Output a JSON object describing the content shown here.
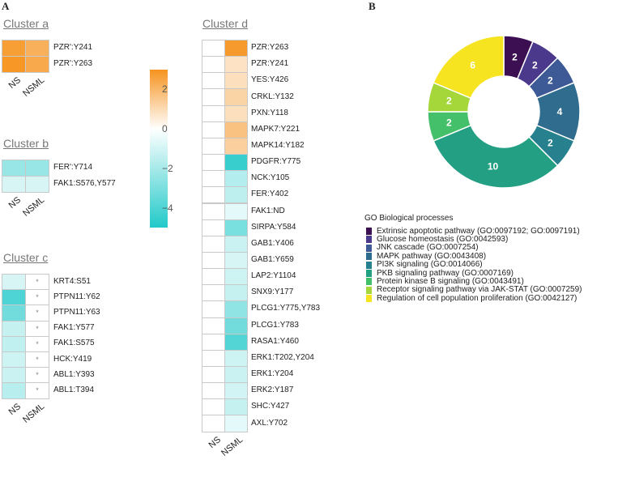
{
  "panels": {
    "a": "A",
    "b": "B"
  },
  "chart_data": [
    {
      "type": "heatmap",
      "title": "Cluster a",
      "columns": [
        "NS",
        "NSML"
      ],
      "rows": [
        "PZR':Y241",
        "PZR':Y263"
      ],
      "values": [
        [
          2.7,
          2.2
        ],
        [
          2.9,
          2.4
        ]
      ],
      "significance": [
        [
          "",
          ""
        ],
        [
          "",
          ""
        ]
      ]
    },
    {
      "type": "heatmap",
      "title": "Cluster b",
      "columns": [
        "NS",
        "NSML"
      ],
      "rows": [
        "FER':Y714",
        "FAK1:S576,Y577"
      ],
      "values": [
        [
          -2.3,
          -2.3
        ],
        [
          -0.9,
          -0.9
        ]
      ],
      "significance": [
        [
          "",
          ""
        ],
        [
          "",
          ""
        ]
      ]
    },
    {
      "type": "heatmap",
      "title": "Cluster c",
      "columns": [
        "NS",
        "NSML"
      ],
      "rows": [
        "KRT4:S51",
        "PTPN11:Y62",
        "PTPN11:Y63",
        "FAK1:Y577",
        "FAK1:S575",
        "HCK:Y419",
        "ABL1:Y393",
        "ABL1:T394"
      ],
      "values": [
        [
          -0.9,
          0
        ],
        [
          -4.0,
          0
        ],
        [
          -3.2,
          0
        ],
        [
          -1.3,
          0
        ],
        [
          -1.4,
          0
        ],
        [
          -1.1,
          0
        ],
        [
          -1.2,
          0
        ],
        [
          -1.6,
          0
        ]
      ],
      "significance": [
        [
          "",
          "*"
        ],
        [
          "",
          "*"
        ],
        [
          "",
          "*"
        ],
        [
          "",
          "*"
        ],
        [
          "",
          "*"
        ],
        [
          "",
          "*"
        ],
        [
          "",
          "*"
        ],
        [
          "",
          "*"
        ]
      ]
    },
    {
      "type": "heatmap",
      "title": "Cluster d",
      "columns": [
        "NS",
        "NSML"
      ],
      "rows": [
        "PZR:Y263",
        "PZR:Y241",
        "YES:Y426",
        "CRKL:Y132",
        "PXN:Y118",
        "MAPK7:Y221",
        "MAPK14:Y182",
        "PDGFR:Y775",
        "NCK:Y105",
        "FER:Y402",
        "FAK1:ND",
        "SIRPA:Y584",
        "GAB1:Y406",
        "GAB1:Y659",
        "LAP2:Y1104",
        "SNX9:Y177",
        "PLCG1:Y775,Y783",
        "PLCG1:Y783",
        "RASA1:Y460",
        "ERK1:T202,Y204",
        "ERK1:Y204",
        "ERK2:Y187",
        "SHC:Y427",
        "AXL:Y702"
      ],
      "values": [
        [
          0,
          2.8
        ],
        [
          0,
          0.8
        ],
        [
          0,
          0.9
        ],
        [
          0,
          1.2
        ],
        [
          0,
          0.9
        ],
        [
          0,
          1.7
        ],
        [
          0,
          1.3
        ],
        [
          0,
          -4.5
        ],
        [
          0,
          -1.7
        ],
        [
          0,
          -1.5
        ],
        [
          0,
          -0.6
        ],
        [
          0,
          -3.0
        ],
        [
          0,
          -1.2
        ],
        [
          0,
          -0.9
        ],
        [
          0,
          -1.1
        ],
        [
          0,
          -1.3
        ],
        [
          0,
          -2.5
        ],
        [
          0,
          -3.2
        ],
        [
          0,
          -3.9
        ],
        [
          0,
          -1.1
        ],
        [
          0,
          -1.2
        ],
        [
          0,
          -1.0
        ],
        [
          0,
          -1.3
        ],
        [
          0,
          -0.6
        ]
      ],
      "significance": []
    },
    {
      "type": "colorbar",
      "ticks": [
        2,
        0,
        -2,
        -4
      ],
      "tick_labels": [
        "2",
        "0",
        "−2",
        "−4"
      ],
      "range": [
        -5,
        3
      ],
      "low_color": "#22c9c9",
      "mid_color": "#ffffff",
      "high_color": "#f6931f"
    },
    {
      "type": "pie",
      "subtype": "donut",
      "legend_title": "GO Biological processes",
      "slices": [
        {
          "label": "Extrinsic apoptotic pathway (GO:0097192; GO:0097191)",
          "value": 2,
          "color": "#3b0f52"
        },
        {
          "label": "Glucose homeostasis (GO:0042593)",
          "value": 2,
          "color": "#4b3a8c"
        },
        {
          "label": "JNK cascade (GO:0007254)",
          "value": 2,
          "color": "#3d5a96"
        },
        {
          "label": "MAPK pathway (GO:0043408)",
          "value": 4,
          "color": "#2f6c8e"
        },
        {
          "label": "PI3K signaling (GO:0014066)",
          "value": 2,
          "color": "#27808d"
        },
        {
          "label": "PKB signaling pathway (GO:0007169)",
          "value": 10,
          "color": "#23a083"
        },
        {
          "label": "Protein kinase B signaling (GO:0043491)",
          "value": 2,
          "color": "#45c06a"
        },
        {
          "label": "Receptor signaling pathway via JAK-STAT (GO:0007259)",
          "value": 2,
          "color": "#a5d73b"
        },
        {
          "label": "Regulation of cell population proliferation (GO:0042127)",
          "value": 6,
          "color": "#f6e420"
        }
      ]
    }
  ]
}
